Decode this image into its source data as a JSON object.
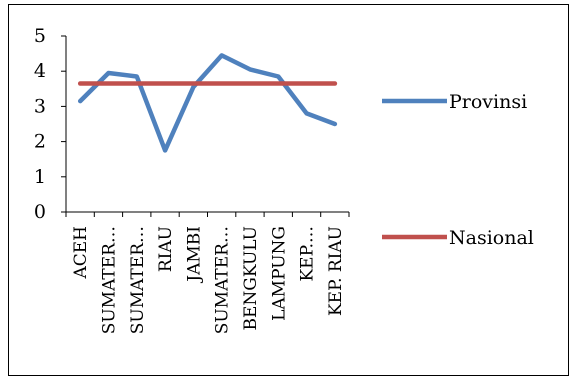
{
  "chart_data": {
    "type": "line",
    "categories": [
      "ACEH",
      "SUMATER…",
      "SUMATER…",
      "RIAU",
      "JAMBI",
      "SUMATER…",
      "BENGKULU",
      "LAMPUNG",
      "KEP.…",
      "KEP. RIAU"
    ],
    "series": [
      {
        "name": "Provinsi",
        "values": [
          3.15,
          3.95,
          3.85,
          1.75,
          3.55,
          4.45,
          4.05,
          3.85,
          2.8,
          2.5
        ],
        "color": "#4F81BD"
      },
      {
        "name": "Nasional",
        "values": [
          3.65,
          3.65,
          3.65,
          3.65,
          3.65,
          3.65,
          3.65,
          3.65,
          3.65,
          3.65
        ],
        "color": "#C0504D"
      }
    ],
    "title": "",
    "xlabel": "",
    "ylabel": "",
    "ylim": [
      0,
      5
    ],
    "yticks": [
      "0",
      "1",
      "2",
      "3",
      "4",
      "5"
    ],
    "grid": false,
    "legend_position": "right"
  }
}
